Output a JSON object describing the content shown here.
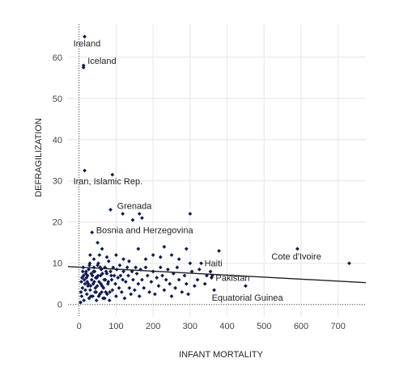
{
  "chart_data": {
    "type": "scatter",
    "xlabel": "INFANT MORTALITY",
    "ylabel": "DEFRAGILIZATION",
    "xlim": [
      -30,
      775
    ],
    "ylim": [
      -3,
      68
    ],
    "x_ticks": [
      0,
      100,
      200,
      300,
      400,
      500,
      600,
      700
    ],
    "y_ticks": [
      0,
      10,
      20,
      30,
      40,
      50,
      60
    ],
    "grid": true,
    "point_color": "#0d1a55",
    "trendline": {
      "x": [
        -30,
        775
      ],
      "y": [
        9.2,
        5.3
      ],
      "color": "#222222"
    },
    "reference_lines": {
      "x_zero_dotted": true,
      "y_zero_dotted": true
    },
    "annotations": [
      {
        "text": "Ireland",
        "x": 15,
        "y": 65
      },
      {
        "text": "Iceland",
        "x": 12,
        "y": 58
      },
      {
        "text": "Iran, Islamic Rep.",
        "x": 15,
        "y": 32.5
      },
      {
        "text": "Grenada",
        "x": 120,
        "y": 23
      },
      {
        "text": "Bosnia and Herzegovina",
        "x": 35,
        "y": 17.5
      },
      {
        "text": "Haiti",
        "x": 330,
        "y": 10
      },
      {
        "text": "Pakistan",
        "x": 358,
        "y": 6.5
      },
      {
        "text": "Cote d'Ivoire",
        "x": 590,
        "y": 13.5
      },
      {
        "text": "Equatorial Guinea",
        "x": 365,
        "y": 3.5
      }
    ],
    "points": [
      [
        15,
        65
      ],
      [
        12,
        58
      ],
      [
        12,
        57.5
      ],
      [
        15,
        32.5
      ],
      [
        90,
        31.5
      ],
      [
        85,
        23
      ],
      [
        118,
        22
      ],
      [
        163,
        22
      ],
      [
        300,
        22
      ],
      [
        170,
        21
      ],
      [
        145,
        20.5
      ],
      [
        35,
        17.5
      ],
      [
        50,
        15
      ],
      [
        62,
        13.5
      ],
      [
        160,
        13.5
      ],
      [
        230,
        14
      ],
      [
        290,
        13.5
      ],
      [
        378,
        13
      ],
      [
        590,
        13.5
      ],
      [
        730,
        10
      ],
      [
        30,
        12
      ],
      [
        40,
        11
      ],
      [
        55,
        12
      ],
      [
        75,
        11.5
      ],
      [
        100,
        12
      ],
      [
        120,
        11
      ],
      [
        135,
        10.5
      ],
      [
        180,
        11
      ],
      [
        200,
        12
      ],
      [
        220,
        11.5
      ],
      [
        250,
        12
      ],
      [
        270,
        11
      ],
      [
        300,
        10
      ],
      [
        330,
        10
      ],
      [
        355,
        8
      ],
      [
        358,
        6.5
      ],
      [
        360,
        7
      ],
      [
        365,
        3.5
      ],
      [
        450,
        4.5
      ],
      [
        10,
        8
      ],
      [
        12,
        7
      ],
      [
        14,
        6
      ],
      [
        16,
        5
      ],
      [
        18,
        7.5
      ],
      [
        20,
        6.5
      ],
      [
        22,
        5.5
      ],
      [
        24,
        4.5
      ],
      [
        26,
        8.5
      ],
      [
        28,
        9.5
      ],
      [
        30,
        3.5
      ],
      [
        32,
        2
      ],
      [
        34,
        6
      ],
      [
        36,
        7
      ],
      [
        38,
        5
      ],
      [
        40,
        9
      ],
      [
        42,
        8
      ],
      [
        44,
        4
      ],
      [
        46,
        3
      ],
      [
        48,
        6.5
      ],
      [
        50,
        9.5
      ],
      [
        52,
        10
      ],
      [
        54,
        5.5
      ],
      [
        56,
        2.5
      ],
      [
        58,
        7
      ],
      [
        60,
        8.5
      ],
      [
        62,
        4.5
      ],
      [
        65,
        1.5
      ],
      [
        68,
        6
      ],
      [
        70,
        9
      ],
      [
        72,
        3
      ],
      [
        75,
        7.5
      ],
      [
        78,
        5
      ],
      [
        80,
        10.5
      ],
      [
        82,
        1
      ],
      [
        85,
        8
      ],
      [
        88,
        6
      ],
      [
        90,
        3.5
      ],
      [
        92,
        9
      ],
      [
        95,
        7
      ],
      [
        98,
        5
      ],
      [
        100,
        2
      ],
      [
        102,
        8.5
      ],
      [
        105,
        6.5
      ],
      [
        108,
        4
      ],
      [
        110,
        9.5
      ],
      [
        112,
        7
      ],
      [
        115,
        3
      ],
      [
        118,
        6
      ],
      [
        120,
        8
      ],
      [
        123,
        1.5
      ],
      [
        126,
        5.5
      ],
      [
        130,
        9
      ],
      [
        133,
        7
      ],
      [
        136,
        4
      ],
      [
        140,
        2.5
      ],
      [
        143,
        8
      ],
      [
        146,
        6
      ],
      [
        150,
        3.5
      ],
      [
        153,
        9
      ],
      [
        156,
        7.5
      ],
      [
        160,
        5
      ],
      [
        163,
        2
      ],
      [
        166,
        8.5
      ],
      [
        170,
        6
      ],
      [
        175,
        4
      ],
      [
        180,
        9
      ],
      [
        185,
        7
      ],
      [
        190,
        3
      ],
      [
        195,
        5.5
      ],
      [
        200,
        8
      ],
      [
        205,
        2.5
      ],
      [
        210,
        6.5
      ],
      [
        215,
        4.5
      ],
      [
        220,
        9
      ],
      [
        225,
        7
      ],
      [
        230,
        3.5
      ],
      [
        235,
        6
      ],
      [
        240,
        8.5
      ],
      [
        245,
        5
      ],
      [
        250,
        2
      ],
      [
        255,
        7.5
      ],
      [
        260,
        4
      ],
      [
        265,
        9
      ],
      [
        270,
        6
      ],
      [
        278,
        3
      ],
      [
        285,
        7
      ],
      [
        290,
        5
      ],
      [
        295,
        2.5
      ],
      [
        305,
        8
      ],
      [
        312,
        4.5
      ],
      [
        320,
        6
      ],
      [
        325,
        8.5
      ],
      [
        340,
        5
      ],
      [
        345,
        7
      ],
      [
        4,
        0.5
      ],
      [
        5,
        3
      ],
      [
        6,
        5.5
      ],
      [
        7,
        2
      ],
      [
        8,
        6.5
      ],
      [
        9,
        4
      ],
      [
        11,
        9
      ],
      [
        13,
        1
      ],
      [
        17,
        3.5
      ],
      [
        19,
        8
      ],
      [
        21,
        2.5
      ],
      [
        23,
        7
      ],
      [
        25,
        5
      ],
      [
        27,
        1.5
      ],
      [
        29,
        10
      ],
      [
        31,
        4.5
      ],
      [
        33,
        7.5
      ],
      [
        37,
        2
      ],
      [
        39,
        8
      ],
      [
        41,
        5.5
      ],
      [
        43,
        3
      ],
      [
        45,
        6.5
      ],
      [
        47,
        1
      ],
      [
        49,
        4.5
      ],
      [
        51,
        7
      ],
      [
        53,
        2
      ],
      [
        57,
        9
      ],
      [
        59,
        5
      ],
      [
        61,
        3
      ],
      [
        63,
        7.5
      ],
      [
        66,
        4
      ],
      [
        69,
        1.5
      ],
      [
        71,
        6
      ],
      [
        73,
        8
      ],
      [
        76,
        2.5
      ],
      [
        79,
        5.5
      ],
      [
        83,
        3
      ],
      [
        87,
        7
      ]
    ]
  }
}
